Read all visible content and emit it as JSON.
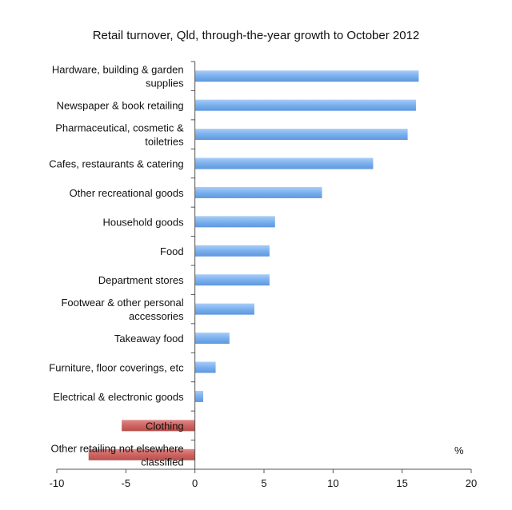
{
  "chart_data": {
    "type": "bar",
    "orientation": "horizontal",
    "title": "Retail turnover, Qld, through-the-year growth to October 2012",
    "unit_label": "%",
    "xlim": [
      -10,
      20
    ],
    "xticks": [
      -10,
      -5,
      0,
      5,
      10,
      15,
      20
    ],
    "categories": [
      "Hardware, building & garden supplies",
      "Newspaper & book retailing",
      "Pharmaceutical, cosmetic & toiletries",
      "Cafes, restaurants & catering",
      "Other recreational goods",
      "Household goods",
      "Food",
      "Department stores",
      "Footwear & other personal accessories",
      "Takeaway food",
      "Furniture, floor coverings, etc",
      "Electrical & electronic goods",
      "Clothing",
      "Other retailing not elsewhere classified"
    ],
    "label_lines": [
      [
        "Hardware, building & garden",
        "supplies"
      ],
      [
        "Newspaper & book retailing"
      ],
      [
        "Pharmaceutical, cosmetic &",
        "toiletries"
      ],
      [
        "Cafes, restaurants & catering"
      ],
      [
        "Other recreational goods"
      ],
      [
        "Household goods"
      ],
      [
        "Food"
      ],
      [
        "Department stores"
      ],
      [
        "Footwear & other personal",
        "accessories"
      ],
      [
        "Takeaway food"
      ],
      [
        "Furniture, floor coverings, etc"
      ],
      [
        "Electrical & electronic goods"
      ],
      [
        "Clothing"
      ],
      [
        "Other retailing not elsewhere",
        "classified"
      ]
    ],
    "values": [
      16.2,
      16.0,
      15.4,
      12.9,
      9.2,
      5.8,
      5.4,
      5.4,
      4.3,
      2.5,
      1.5,
      0.6,
      -5.3,
      -7.7
    ],
    "colors": {
      "positive": "#7ab0ee",
      "negative": "#cd6461"
    },
    "grid": false,
    "legend": "none"
  }
}
